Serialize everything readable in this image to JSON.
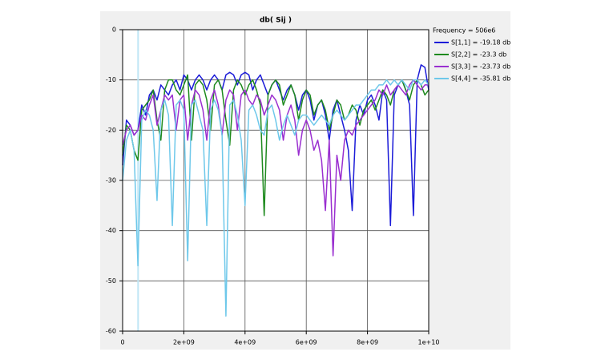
{
  "chart_data": {
    "type": "line",
    "title": "db( Sij )",
    "marker": {
      "value": 506000000,
      "label": "Frequency = 506e6"
    },
    "x": [
      0,
      125000000.0,
      250000000.0,
      375000000.0,
      500000000.0,
      625000000.0,
      750000000.0,
      875000000.0,
      1000000000.0,
      1125000000.0,
      1250000000.0,
      1375000000.0,
      1500000000.0,
      1625000000.0,
      1750000000.0,
      1875000000.0,
      2000000000.0,
      2125000000.0,
      2250000000.0,
      2375000000.0,
      2500000000.0,
      2625000000.0,
      2750000000.0,
      2875000000.0,
      3000000000.0,
      3125000000.0,
      3250000000.0,
      3375000000.0,
      3500000000.0,
      3625000000.0,
      3750000000.0,
      3875000000.0,
      4000000000.0,
      4125000000.0,
      4250000000.0,
      4375000000.0,
      4500000000.0,
      4625000000.0,
      4750000000.0,
      4875000000.0,
      5000000000.0,
      5125000000.0,
      5250000000.0,
      5375000000.0,
      5500000000.0,
      5625000000.0,
      5750000000.0,
      5875000000.0,
      6000000000.0,
      6125000000.0,
      6250000000.0,
      6375000000.0,
      6500000000.0,
      6625000000.0,
      6750000000.0,
      6875000000.0,
      7000000000.0,
      7125000000.0,
      7250000000.0,
      7375000000.0,
      7500000000.0,
      7625000000.0,
      7750000000.0,
      7875000000.0,
      8000000000.0,
      8125000000.0,
      8250000000.0,
      8375000000.0,
      8500000000.0,
      8625000000.0,
      8750000000.0,
      8875000000.0,
      9000000000.0,
      9125000000.0,
      9250000000.0,
      9375000000.0,
      9500000000.0,
      9625000000.0,
      9750000000.0,
      9875000000.0,
      10000000000.0
    ],
    "series": [
      {
        "name": "S[1,1] = -19.18 db",
        "color": "#1c1cd8",
        "values": [
          -27,
          -18,
          -19,
          -21,
          -20,
          -15,
          -17,
          -13,
          -12,
          -14,
          -11,
          -12,
          -13,
          -11,
          -10,
          -12,
          -9,
          -10,
          -12,
          -10,
          -9,
          -10,
          -12,
          -10,
          -9,
          -10,
          -12,
          -9,
          -8.5,
          -9,
          -11,
          -9,
          -8.5,
          -9,
          -12,
          -10,
          -9,
          -11,
          -13,
          -11,
          -10,
          -12,
          -14,
          -12,
          -11,
          -13,
          -16,
          -13,
          -12,
          -14,
          -18,
          -15,
          -14,
          -17,
          -22,
          -16,
          -14,
          -17,
          -20,
          -24,
          -36,
          -18,
          -15,
          -17,
          -14,
          -13,
          -15,
          -18,
          -12,
          -14,
          -39,
          -13,
          -11,
          -10,
          -12,
          -15,
          -37,
          -10,
          -7,
          -7.5,
          -12
        ]
      },
      {
        "name": "S[2,2] = -23.3 db",
        "color": "#1e8a1e",
        "values": [
          -25,
          -19,
          -20,
          -24,
          -26,
          -16,
          -15,
          -14,
          -12,
          -18,
          -22,
          -12,
          -10,
          -10,
          -12,
          -13,
          -11,
          -9,
          -22,
          -11,
          -10,
          -11,
          -14,
          -20,
          -11,
          -10,
          -12,
          -18,
          -23,
          -12,
          -10,
          -11,
          -13,
          -11,
          -10,
          -12,
          -15,
          -37,
          -13,
          -11,
          -10,
          -11,
          -15,
          -13,
          -11,
          -13,
          -18,
          -14,
          -12,
          -13,
          -17,
          -15,
          -14,
          -16,
          -20,
          -17,
          -14,
          -15,
          -18,
          -17,
          -15,
          -16,
          -19,
          -16,
          -15,
          -14,
          -16,
          -14,
          -12,
          -13,
          -15,
          -12,
          -11,
          -10,
          -12,
          -14,
          -11,
          -10,
          -11,
          -13,
          -12
        ]
      },
      {
        "name": "S[3,3] = -23.73 db",
        "color": "#9a2fd0",
        "values": [
          -23,
          -20,
          -19,
          -21,
          -20,
          -17,
          -18,
          -15,
          -13,
          -19,
          -16,
          -13,
          -14,
          -13,
          -20,
          -14,
          -13,
          -22,
          -15,
          -12,
          -13,
          -16,
          -22,
          -14,
          -12,
          -15,
          -21,
          -14,
          -12,
          -13,
          -20,
          -13,
          -12,
          -14,
          -15,
          -13,
          -14,
          -17,
          -15,
          -13,
          -14,
          -16,
          -22,
          -17,
          -15,
          -18,
          -25,
          -20,
          -18,
          -20,
          -24,
          -22,
          -26,
          -36,
          -22,
          -45,
          -25,
          -30,
          -22,
          -20,
          -21,
          -19,
          -18,
          -17,
          -16,
          -15,
          -14,
          -12,
          -13,
          -11,
          -13,
          -12,
          -11,
          -12,
          -13,
          -11,
          -10,
          -11,
          -12,
          -11,
          -11
        ]
      },
      {
        "name": "S[4,4] = -35.81 db",
        "color": "#6ec8ea",
        "values": [
          -30,
          -22,
          -20,
          -24,
          -47,
          -18,
          -16,
          -17,
          -20,
          -34,
          -16,
          -14,
          -17,
          -39,
          -15,
          -14,
          -16,
          -46,
          -15,
          -14,
          -17,
          -20,
          -39,
          -16,
          -14,
          -16,
          -21,
          -57,
          -15,
          -14,
          -17,
          -22,
          -35,
          -16,
          -15,
          -17,
          -20,
          -21,
          -16,
          -15,
          -18,
          -22,
          -19,
          -17,
          -19,
          -21,
          -18,
          -17,
          -17,
          -18,
          -19,
          -18,
          -17,
          -18,
          -19,
          -17,
          -16,
          -17,
          -18,
          -17,
          -16,
          -15,
          -15,
          -14,
          -13,
          -12,
          -12,
          -11,
          -11,
          -10,
          -11,
          -10,
          -11,
          -10,
          -11,
          -12,
          -10,
          -10,
          -11,
          -10,
          -11
        ]
      }
    ],
    "xlim": [
      0,
      10000000000.0
    ],
    "xticks": [
      0,
      {
        "value": 2000000000.0,
        "label": "2e+09"
      },
      {
        "value": 4000000000.0,
        "label": "4e+09"
      },
      {
        "value": 6000000000.0,
        "label": "6e+09"
      },
      {
        "value": 8000000000.0,
        "label": "8e+09"
      },
      {
        "value": 10000000000.0,
        "label": "1e+10"
      }
    ],
    "ylim": [
      -60,
      0
    ],
    "yticks": [
      0,
      -10,
      -20,
      -30,
      -40,
      -50,
      -60
    ],
    "grid": true
  }
}
